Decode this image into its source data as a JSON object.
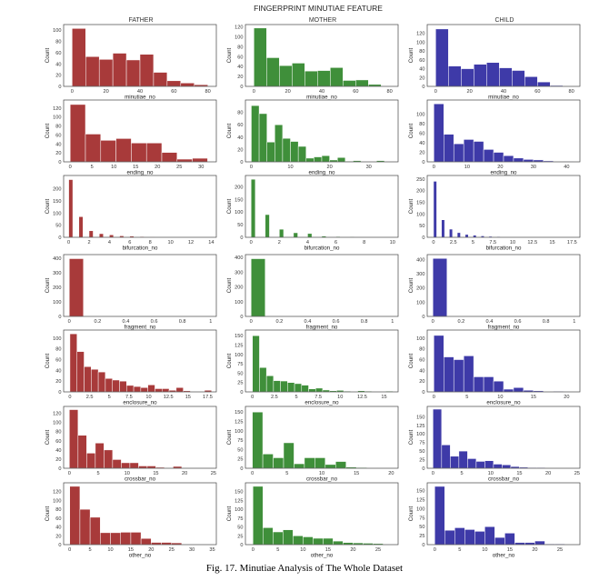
{
  "figure": {
    "suptitle": "FINGERPRINT MINUTIAE FEATURE",
    "caption": "Fig. 17. Minutiae Analysis of The Whole Dataset",
    "columns": [
      "FATHER",
      "MOTHER",
      "CHILD"
    ],
    "colors": [
      "#a83a3a",
      "#3f8f3a",
      "#3e3aa8"
    ]
  },
  "chart_data": [
    {
      "type": "bar",
      "panel": "father-minutiae_no",
      "xlabel": "minutiae_no",
      "ylabel": "Count",
      "bin_edges": [
        0,
        8,
        16,
        24,
        32,
        40,
        48,
        56,
        64,
        72,
        80
      ],
      "values": [
        103,
        53,
        48,
        59,
        47,
        57,
        25,
        10,
        6,
        3
      ],
      "xlim": [
        -5,
        85
      ],
      "ylim": [
        0,
        110
      ],
      "xticks": [
        0,
        20,
        40,
        60,
        80
      ],
      "yticks": [
        0,
        20,
        40,
        60,
        80,
        100
      ]
    },
    {
      "type": "bar",
      "panel": "mother-minutiae_no",
      "xlabel": "minutiae_no",
      "ylabel": "Count",
      "bin_edges": [
        0,
        7.5,
        15,
        22.5,
        30,
        37.5,
        45,
        52.5,
        60,
        67.5,
        75
      ],
      "values": [
        118,
        58,
        42,
        47,
        31,
        32,
        38,
        12,
        13,
        4
      ],
      "xlim": [
        -5,
        85
      ],
      "ylim": [
        0,
        125
      ],
      "xticks": [
        0,
        20,
        40,
        60,
        80
      ],
      "yticks": [
        0,
        20,
        40,
        60,
        80,
        100,
        120
      ]
    },
    {
      "type": "bar",
      "panel": "child-minutiae_no",
      "xlabel": "minutiae_no",
      "ylabel": "Count",
      "bin_edges": [
        0,
        7.5,
        15,
        22.5,
        30,
        37.5,
        45,
        52.5,
        60,
        67.5,
        75
      ],
      "values": [
        130,
        46,
        40,
        50,
        54,
        42,
        36,
        22,
        10,
        2
      ],
      "xlim": [
        -5,
        85
      ],
      "ylim": [
        0,
        140
      ],
      "xticks": [
        0,
        20,
        40,
        60,
        80
      ],
      "yticks": [
        0,
        20,
        40,
        60,
        80,
        100,
        120
      ]
    },
    {
      "type": "bar",
      "panel": "father-ending_no",
      "xlabel": "ending_no",
      "ylabel": "Count",
      "bin_edges": [
        0,
        3.5,
        7,
        10.5,
        14,
        17.5,
        21,
        24.5,
        28,
        31.5
      ],
      "values": [
        128,
        62,
        48,
        52,
        42,
        42,
        21,
        6,
        8
      ],
      "xlim": [
        -1.5,
        33.5
      ],
      "ylim": [
        0,
        138
      ],
      "xticks": [
        0,
        5,
        10,
        15,
        20,
        25,
        30
      ],
      "yticks": [
        0,
        20,
        40,
        60,
        80,
        100,
        120
      ]
    },
    {
      "type": "bar",
      "panel": "mother-ending_no",
      "xlabel": "ending_no",
      "ylabel": "Count",
      "bin_edges": [
        0,
        2,
        4,
        6,
        8,
        10,
        12,
        14,
        16,
        18,
        20,
        22,
        24,
        26,
        28,
        30,
        32,
        34,
        36
      ],
      "values": [
        91,
        78,
        32,
        60,
        38,
        33,
        25,
        6,
        8,
        10,
        3,
        7,
        1,
        2,
        0,
        0,
        2,
        0
      ],
      "xlim": [
        -1.5,
        37.5
      ],
      "ylim": [
        0,
        100
      ],
      "xticks": [
        0,
        10,
        20,
        30
      ],
      "yticks": [
        0,
        20,
        40,
        60,
        80
      ]
    },
    {
      "type": "bar",
      "panel": "child-ending_no",
      "xlabel": "ending_no",
      "ylabel": "Count",
      "bin_edges": [
        0,
        3,
        6,
        9,
        12,
        15,
        18,
        21,
        24,
        27,
        30,
        33,
        36,
        39,
        42
      ],
      "values": [
        122,
        58,
        38,
        47,
        43,
        26,
        20,
        13,
        8,
        5,
        4,
        2,
        0,
        1
      ],
      "xlim": [
        -2,
        44
      ],
      "ylim": [
        0,
        130
      ],
      "xticks": [
        0,
        10,
        20,
        30,
        40
      ],
      "yticks": [
        0,
        20,
        40,
        60,
        80,
        100
      ]
    },
    {
      "type": "bar",
      "panel": "father-bifurcation_no",
      "xlabel": "bifurcation_no",
      "ylabel": "Count",
      "bin_edges": [
        0,
        0.4,
        1,
        1.4,
        2,
        2.4,
        3,
        3.4,
        4,
        4.4,
        5,
        5.4,
        6,
        6.4,
        7,
        7.4,
        8,
        8.4,
        9,
        9.4,
        10,
        10.4,
        11,
        11.4,
        12,
        12.4,
        13,
        13.4
      ],
      "values": [
        238,
        0,
        85,
        0,
        27,
        0,
        15,
        0,
        10,
        0,
        6,
        0,
        5,
        0,
        3,
        0,
        2,
        0,
        0,
        0,
        1,
        0,
        0,
        0,
        0,
        0,
        1
      ],
      "xlim": [
        -0.5,
        14.5
      ],
      "ylim": [
        0,
        255
      ],
      "xticks": [
        0,
        2,
        4,
        6,
        8,
        10,
        12,
        14
      ],
      "yticks": [
        0,
        50,
        100,
        150,
        200
      ]
    },
    {
      "type": "bar",
      "panel": "mother-bifurcation_no",
      "xlabel": "bifurcation_no",
      "ylabel": "Count",
      "bin_edges": [
        0,
        0.3,
        1,
        1.3,
        2,
        2.3,
        3,
        3.3,
        4,
        4.3,
        5,
        5.3,
        6,
        6.3,
        7,
        7.3,
        8,
        8.3,
        9,
        9.3,
        10
      ],
      "values": [
        230,
        0,
        90,
        0,
        32,
        0,
        18,
        0,
        15,
        0,
        5,
        0,
        3,
        0,
        2,
        0,
        0,
        0,
        0,
        1
      ],
      "xlim": [
        -0.4,
        10.4
      ],
      "ylim": [
        0,
        245
      ],
      "xticks": [
        0,
        2,
        4,
        6,
        8,
        10
      ],
      "yticks": [
        0,
        50,
        100,
        150,
        200
      ]
    },
    {
      "type": "bar",
      "panel": "child-bifurcation_no",
      "xlabel": "bifurcation_no",
      "ylabel": "Count",
      "bin_edges": [
        0,
        0.4,
        1,
        1.4,
        2,
        2.4,
        3,
        3.4,
        4,
        4.4,
        5,
        5.4,
        6,
        6.4,
        7,
        7.4,
        8,
        8.4,
        9,
        9.4,
        10,
        10.4,
        11,
        11.4,
        12,
        12.4,
        13,
        13.4,
        14,
        14.4,
        15,
        15.4,
        16,
        16.4,
        17,
        17.4
      ],
      "values": [
        240,
        0,
        75,
        0,
        35,
        0,
        20,
        0,
        12,
        0,
        9,
        0,
        6,
        0,
        4,
        0,
        3,
        0,
        2,
        0,
        2,
        0,
        1,
        0,
        1,
        0,
        0,
        0,
        1,
        0,
        0,
        0,
        0,
        0,
        1
      ],
      "xlim": [
        -0.8,
        18.5
      ],
      "ylim": [
        0,
        265
      ],
      "xticks": [
        0,
        2.5,
        5,
        7.5,
        10,
        12.5,
        15,
        17.5
      ],
      "yticks": [
        0,
        50,
        100,
        150,
        200,
        250
      ]
    },
    {
      "type": "bar",
      "panel": "father-fragment_no",
      "xlabel": "fragment_no",
      "ylabel": "Count",
      "bin_edges": [
        0,
        0.1
      ],
      "values": [
        397
      ],
      "xlim": [
        -0.04,
        1.04
      ],
      "ylim": [
        0,
        425
      ],
      "xticks": [
        0,
        0.2,
        0.4,
        0.6,
        0.8,
        1.0
      ],
      "yticks": [
        0,
        100,
        200,
        300,
        400
      ]
    },
    {
      "type": "bar",
      "panel": "mother-fragment_no",
      "xlabel": "fragment_no",
      "ylabel": "Count",
      "bin_edges": [
        0,
        0.1
      ],
      "values": [
        392
      ],
      "xlim": [
        -0.04,
        1.04
      ],
      "ylim": [
        0,
        420
      ],
      "xticks": [
        0,
        0.2,
        0.4,
        0.6,
        0.8,
        1.0
      ],
      "yticks": [
        0,
        100,
        200,
        300,
        400
      ]
    },
    {
      "type": "bar",
      "panel": "child-fragment_no",
      "xlabel": "fragment_no",
      "ylabel": "Count",
      "bin_edges": [
        0,
        0.1
      ],
      "values": [
        408
      ],
      "xlim": [
        -0.04,
        1.04
      ],
      "ylim": [
        0,
        435
      ],
      "xticks": [
        0,
        0.2,
        0.4,
        0.6,
        0.8,
        1.0
      ],
      "yticks": [
        0,
        100,
        200,
        300,
        400
      ]
    },
    {
      "type": "bar",
      "panel": "father-enclosure_no",
      "xlabel": "enclosure_no",
      "ylabel": "Count",
      "bin_edges": [
        0,
        0.9,
        1.8,
        2.7,
        3.6,
        4.5,
        5.4,
        6.3,
        7.2,
        8.1,
        9,
        9.9,
        10.8,
        11.7,
        12.6,
        13.5,
        14.4,
        15.3,
        16.2,
        17.1,
        18
      ],
      "values": [
        108,
        75,
        47,
        42,
        37,
        25,
        22,
        20,
        12,
        10,
        8,
        13,
        6,
        6,
        3,
        8,
        2,
        0,
        0,
        3
      ],
      "xlim": [
        -0.8,
        18.6
      ],
      "ylim": [
        0,
        115
      ],
      "xticks": [
        0,
        2.5,
        5,
        7.5,
        10,
        12.5,
        15,
        17.5
      ],
      "yticks": [
        0,
        20,
        40,
        60,
        80,
        100
      ]
    },
    {
      "type": "bar",
      "panel": "mother-enclosure_no",
      "xlabel": "enclosure_no",
      "ylabel": "Count",
      "bin_edges": [
        0,
        0.8,
        1.6,
        2.4,
        3.2,
        4,
        4.8,
        5.6,
        6.4,
        7.2,
        8,
        8.8,
        9.6,
        10.4,
        11.2,
        12,
        12.8,
        13.6,
        14.4,
        15.2,
        16
      ],
      "values": [
        150,
        65,
        43,
        30,
        29,
        25,
        22,
        18,
        8,
        10,
        5,
        3,
        4,
        2,
        1,
        3,
        2,
        1,
        0,
        2
      ],
      "xlim": [
        -0.8,
        16.6
      ],
      "ylim": [
        0,
        165
      ],
      "xticks": [
        0,
        2.5,
        5,
        7.5,
        10,
        12.5,
        15
      ],
      "yticks": [
        0,
        25,
        50,
        75,
        100,
        125,
        150
      ]
    },
    {
      "type": "bar",
      "panel": "child-enclosure_no",
      "xlabel": "enclosure_no",
      "ylabel": "Count",
      "bin_edges": [
        0,
        1.5,
        3,
        4.5,
        6,
        7.5,
        9,
        10.5,
        12,
        13.5,
        15,
        16.5,
        18,
        19.5
      ],
      "values": [
        105,
        65,
        60,
        67,
        28,
        28,
        20,
        5,
        8,
        3,
        2,
        0,
        1
      ],
      "xlim": [
        -1,
        22
      ],
      "ylim": [
        0,
        115
      ],
      "xticks": [
        0,
        5,
        10,
        15,
        20
      ],
      "yticks": [
        0,
        20,
        40,
        60,
        80,
        100
      ]
    },
    {
      "type": "bar",
      "panel": "father-crossbar_no",
      "xlabel": "crossbar_no",
      "ylabel": "Count",
      "bin_edges": [
        0,
        1.5,
        3,
        4.5,
        6,
        7.5,
        9,
        10.5,
        12,
        13.5,
        15,
        16.5,
        18,
        19.5,
        21,
        22.5,
        24
      ],
      "values": [
        128,
        72,
        33,
        55,
        40,
        19,
        12,
        12,
        5,
        5,
        2,
        1,
        4,
        0,
        0,
        1
      ],
      "xlim": [
        -1,
        25.5
      ],
      "ylim": [
        0,
        135
      ],
      "xticks": [
        0,
        5,
        10,
        15,
        20,
        25
      ],
      "yticks": [
        0,
        20,
        40,
        60,
        80,
        100,
        120
      ]
    },
    {
      "type": "bar",
      "panel": "mother-crossbar_no",
      "xlabel": "crossbar_no",
      "ylabel": "Count",
      "bin_edges": [
        0,
        1.5,
        3,
        4.5,
        6,
        7.5,
        9,
        10.5,
        12,
        13.5,
        15,
        16.5,
        18,
        19.5
      ],
      "values": [
        150,
        38,
        28,
        68,
        12,
        28,
        28,
        10,
        18,
        3,
        2,
        1,
        0
      ],
      "xlim": [
        -1,
        21
      ],
      "ylim": [
        0,
        165
      ],
      "xticks": [
        0,
        5,
        10,
        15,
        20
      ],
      "yticks": [
        0,
        25,
        50,
        75,
        100,
        125,
        150
      ]
    },
    {
      "type": "bar",
      "panel": "child-crossbar_no",
      "xlabel": "crossbar_no",
      "ylabel": "Count",
      "bin_edges": [
        0,
        1.5,
        3,
        4.5,
        6,
        7.5,
        9,
        10.5,
        12,
        13.5,
        15,
        16.5,
        18,
        19.5,
        21,
        22.5,
        24
      ],
      "values": [
        172,
        68,
        35,
        50,
        28,
        20,
        22,
        12,
        10,
        5,
        3,
        2,
        2,
        1,
        1,
        1
      ],
      "xlim": [
        -1,
        25.5
      ],
      "ylim": [
        0,
        180
      ],
      "xticks": [
        0,
        5,
        10,
        15,
        20,
        25
      ],
      "yticks": [
        0,
        25,
        50,
        75,
        100,
        125,
        150
      ]
    },
    {
      "type": "bar",
      "panel": "father-other_no",
      "xlabel": "other_no",
      "ylabel": "Count",
      "bin_edges": [
        0,
        2.5,
        5,
        7.5,
        10,
        12.5,
        15,
        17.5,
        20,
        22.5,
        25,
        27.5,
        30,
        32.5
      ],
      "values": [
        132,
        80,
        62,
        27,
        27,
        28,
        28,
        14,
        5,
        5,
        4,
        1,
        1
      ],
      "xlim": [
        -1.5,
        36
      ],
      "ylim": [
        0,
        140
      ],
      "xticks": [
        0,
        5,
        10,
        15,
        20,
        25,
        30,
        35
      ],
      "yticks": [
        0,
        20,
        40,
        60,
        80,
        100,
        120
      ]
    },
    {
      "type": "bar",
      "panel": "mother-other_no",
      "xlabel": "other_no",
      "ylabel": "Count",
      "bin_edges": [
        0,
        2,
        4,
        6,
        8,
        10,
        12,
        14,
        16,
        18,
        20,
        22,
        24,
        26
      ],
      "values": [
        165,
        48,
        36,
        42,
        25,
        22,
        18,
        18,
        10,
        6,
        5,
        4,
        3
      ],
      "xlim": [
        -1.5,
        29
      ],
      "ylim": [
        0,
        175
      ],
      "xticks": [
        0,
        5,
        10,
        15,
        20,
        25
      ],
      "yticks": [
        0,
        25,
        50,
        75,
        100,
        125,
        150
      ]
    },
    {
      "type": "bar",
      "panel": "child-other_no",
      "xlabel": "other_no",
      "ylabel": "Count",
      "bin_edges": [
        0,
        2,
        4,
        6,
        8,
        10,
        12,
        14,
        16,
        18,
        20,
        22,
        24,
        26
      ],
      "values": [
        162,
        40,
        47,
        42,
        37,
        50,
        20,
        32,
        6,
        6,
        10,
        2,
        2
      ],
      "xlim": [
        -1.5,
        29
      ],
      "ylim": [
        0,
        172
      ],
      "xticks": [
        0,
        5,
        10,
        15,
        20,
        25
      ],
      "yticks": [
        0,
        25,
        50,
        75,
        100,
        125,
        150
      ]
    }
  ]
}
